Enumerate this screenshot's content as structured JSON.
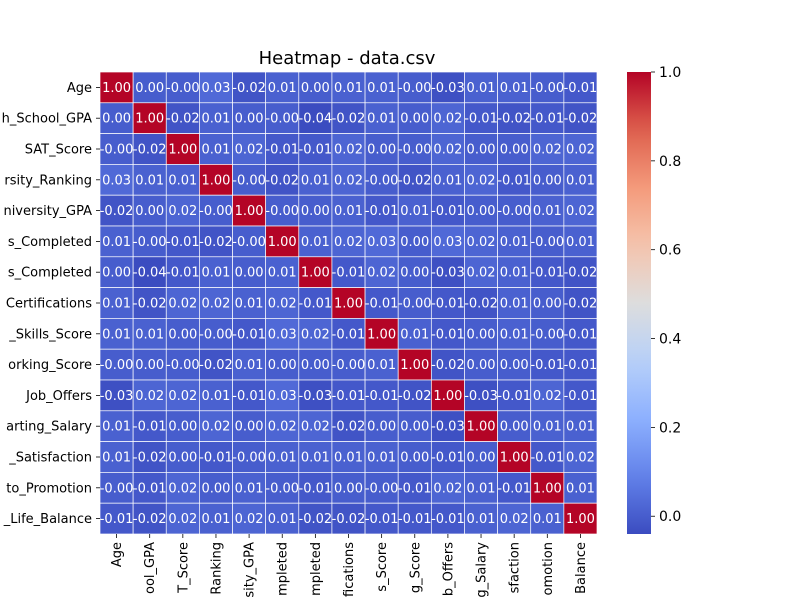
{
  "chart_data": {
    "type": "heatmap",
    "title": "Heatmap - data.csv",
    "row_labels": [
      "Age",
      "h_School_GPA",
      "SAT_Score",
      "rsity_Ranking",
      "niversity_GPA",
      "s_Completed",
      "s_Completed",
      "Certifications",
      "_Skills_Score",
      "orking_Score",
      "Job_Offers",
      "arting_Salary",
      "_Satisfaction",
      "to_Promotion",
      "_Life_Balance"
    ],
    "col_labels": [
      "Age",
      "ool_GPA",
      "T_Score",
      "Ranking",
      "sity_GPA",
      "mpleted",
      "mpleted",
      "fications",
      "s_Score",
      "g_Score",
      "b_Offers",
      "g_Salary",
      "sfaction",
      "omotion",
      "Balance"
    ],
    "values": [
      [
        "1.00",
        "0.00",
        "-0.00",
        "0.03",
        "-0.02",
        "0.01",
        "0.00",
        "0.01",
        "0.01",
        "-0.00",
        "-0.03",
        "0.01",
        "0.01",
        "-0.00",
        "-0.01"
      ],
      [
        "0.00",
        "1.00",
        "-0.02",
        "0.01",
        "0.00",
        "-0.00",
        "-0.04",
        "-0.02",
        "0.01",
        "0.00",
        "0.02",
        "-0.01",
        "-0.02",
        "-0.01",
        "-0.02"
      ],
      [
        "-0.00",
        "-0.02",
        "1.00",
        "0.01",
        "0.02",
        "-0.01",
        "-0.01",
        "0.02",
        "0.00",
        "-0.00",
        "0.02",
        "0.00",
        "0.00",
        "0.02",
        "0.02"
      ],
      [
        "0.03",
        "0.01",
        "0.01",
        "1.00",
        "-0.00",
        "-0.02",
        "0.01",
        "0.02",
        "-0.00",
        "-0.02",
        "0.01",
        "0.02",
        "-0.01",
        "0.00",
        "0.01"
      ],
      [
        "-0.02",
        "0.00",
        "0.02",
        "-0.00",
        "1.00",
        "-0.00",
        "0.00",
        "0.01",
        "-0.01",
        "0.01",
        "-0.01",
        "0.00",
        "-0.00",
        "0.01",
        "0.02"
      ],
      [
        "0.01",
        "-0.00",
        "-0.01",
        "-0.02",
        "-0.00",
        "1.00",
        "0.01",
        "0.02",
        "0.03",
        "0.00",
        "0.03",
        "0.02",
        "0.01",
        "-0.00",
        "0.01"
      ],
      [
        "0.00",
        "-0.04",
        "-0.01",
        "0.01",
        "0.00",
        "0.01",
        "1.00",
        "-0.01",
        "0.02",
        "0.00",
        "-0.03",
        "0.02",
        "0.01",
        "-0.01",
        "-0.02"
      ],
      [
        "0.01",
        "-0.02",
        "0.02",
        "0.02",
        "0.01",
        "0.02",
        "-0.01",
        "1.00",
        "-0.01",
        "-0.00",
        "-0.01",
        "-0.02",
        "0.01",
        "0.00",
        "-0.02"
      ],
      [
        "0.01",
        "0.01",
        "0.00",
        "-0.00",
        "-0.01",
        "0.03",
        "0.02",
        "-0.01",
        "1.00",
        "0.01",
        "-0.01",
        "0.00",
        "0.01",
        "-0.00",
        "-0.01"
      ],
      [
        "-0.00",
        "0.00",
        "-0.00",
        "-0.02",
        "0.01",
        "0.00",
        "0.00",
        "-0.00",
        "0.01",
        "1.00",
        "-0.02",
        "0.00",
        "0.00",
        "-0.01",
        "-0.01"
      ],
      [
        "-0.03",
        "0.02",
        "0.02",
        "0.01",
        "-0.01",
        "0.03",
        "-0.03",
        "-0.01",
        "-0.01",
        "-0.02",
        "1.00",
        "-0.03",
        "-0.01",
        "0.02",
        "-0.01"
      ],
      [
        "0.01",
        "-0.01",
        "0.00",
        "0.02",
        "0.00",
        "0.02",
        "0.02",
        "-0.02",
        "0.00",
        "0.00",
        "-0.03",
        "1.00",
        "0.00",
        "0.01",
        "0.01"
      ],
      [
        "0.01",
        "-0.02",
        "0.00",
        "-0.01",
        "-0.00",
        "0.01",
        "0.01",
        "0.01",
        "0.01",
        "0.00",
        "-0.01",
        "0.00",
        "1.00",
        "-0.01",
        "0.02"
      ],
      [
        "-0.00",
        "-0.01",
        "0.02",
        "0.00",
        "0.01",
        "-0.00",
        "-0.01",
        "0.00",
        "-0.00",
        "-0.01",
        "0.02",
        "0.01",
        "-0.01",
        "1.00",
        "0.01"
      ],
      [
        "-0.01",
        "-0.02",
        "0.02",
        "0.01",
        "0.02",
        "0.01",
        "-0.02",
        "-0.02",
        "-0.01",
        "-0.01",
        "-0.01",
        "0.01",
        "0.02",
        "0.01",
        "1.00"
      ]
    ],
    "colormap": "coolwarm",
    "vmin": -0.04,
    "vmax": 1.0,
    "colorbar_ticks": [
      "0.0",
      "0.2",
      "0.4",
      "0.6",
      "0.8",
      "1.0"
    ],
    "cell_border_color": "#ffffff"
  }
}
